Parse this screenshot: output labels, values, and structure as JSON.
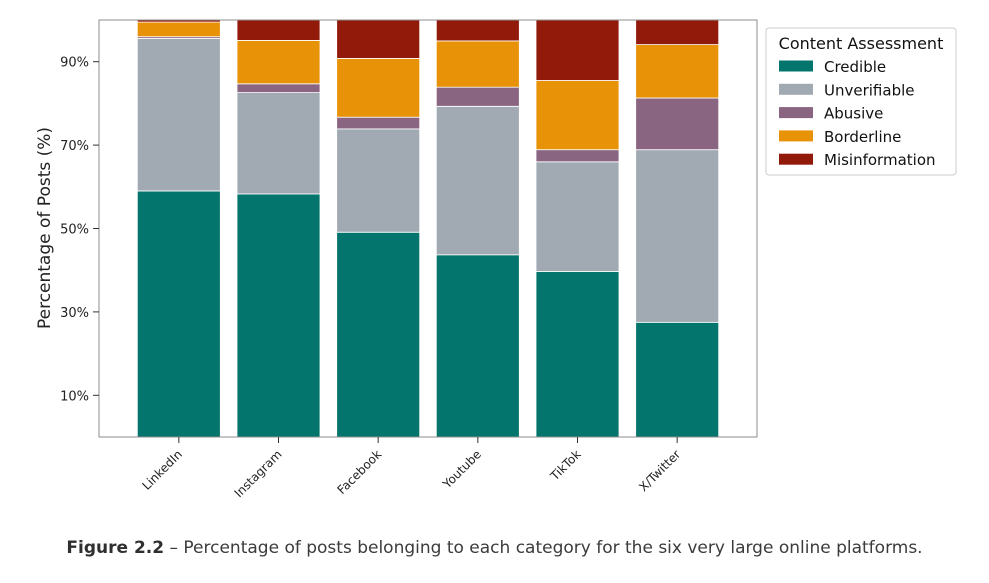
{
  "chart_data": {
    "type": "bar",
    "stacked": true,
    "ylabel": "Percentage of Posts (%)",
    "xlabel": "",
    "ylim": [
      0,
      100
    ],
    "yticks": [
      10,
      30,
      50,
      70,
      90
    ],
    "ytick_labels": [
      "10%",
      "30%",
      "50%",
      "70%",
      "90%"
    ],
    "grid": false,
    "legend": {
      "title": "Content Assessment",
      "placement": "upper-right-outside"
    },
    "categories": [
      "LinkedIn",
      "Instagram",
      "Facebook",
      "Youtube",
      "TikTok",
      "X/Twitter"
    ],
    "series": [
      {
        "name": "Credible",
        "color": "#04756c",
        "values": [
          59.0,
          58.3,
          49.1,
          43.7,
          39.7,
          27.5
        ]
      },
      {
        "name": "Unverifiable",
        "color": "#a1aab3",
        "values": [
          36.6,
          24.3,
          24.8,
          35.6,
          26.3,
          41.4
        ]
      },
      {
        "name": "Abusive",
        "color": "#8a6582",
        "values": [
          0.4,
          2.1,
          2.8,
          4.6,
          2.9,
          12.4
        ]
      },
      {
        "name": "Borderline",
        "color": "#e89208",
        "values": [
          3.5,
          10.4,
          14.1,
          11.1,
          16.6,
          12.8
        ]
      },
      {
        "name": "Misinformation",
        "color": "#921a0b",
        "values": [
          0.5,
          4.9,
          9.2,
          5.0,
          14.5,
          5.9
        ]
      }
    ]
  },
  "caption": {
    "label": "Figure 2.2",
    "text": " – Percentage of posts belonging to each category for the six very large online platforms."
  }
}
